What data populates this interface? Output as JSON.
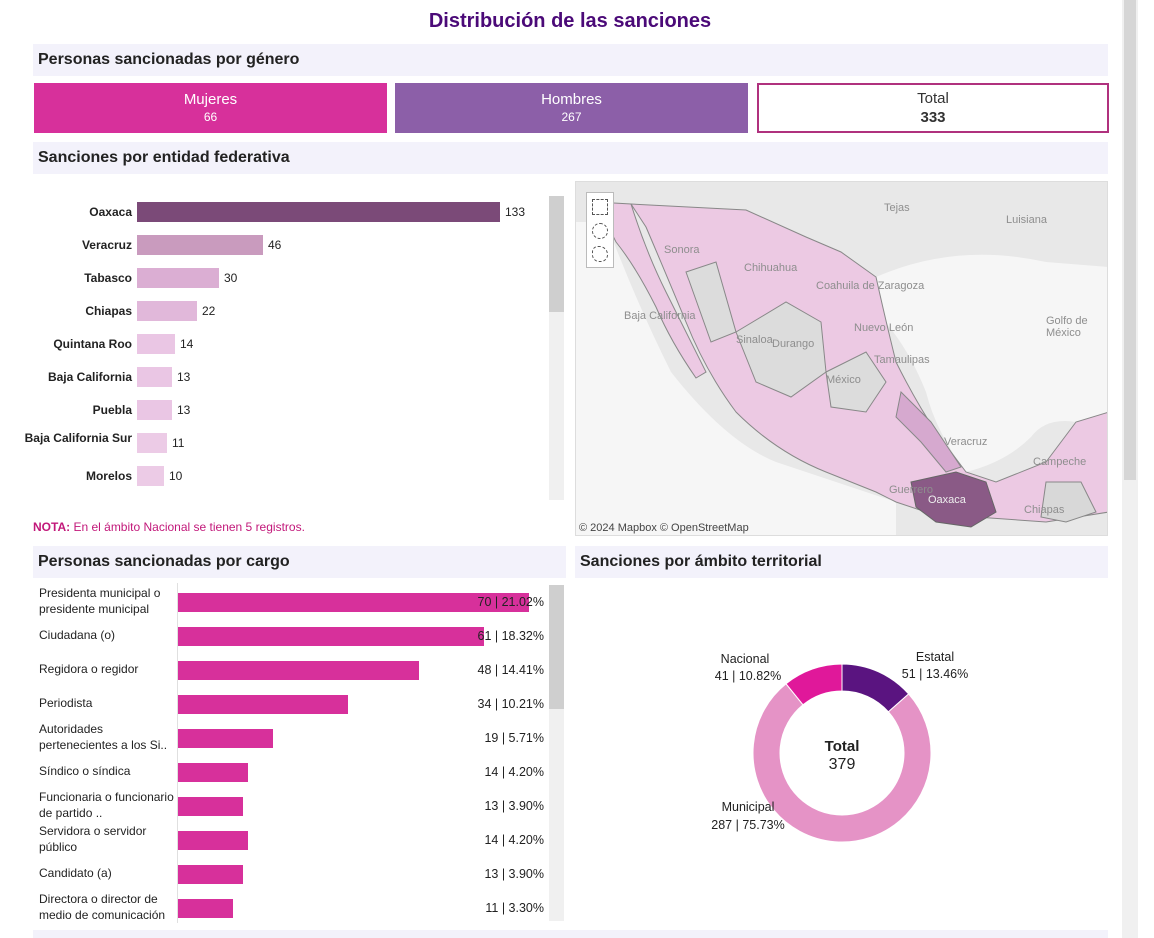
{
  "title": "Distribución de las sanciones",
  "genero": {
    "heading": "Personas sancionadas por género",
    "cards": [
      {
        "label": "Mujeres",
        "value": "66",
        "color": "#d7309b"
      },
      {
        "label": "Hombres",
        "value": "267",
        "color": "#8c5fa8"
      },
      {
        "label": "Total",
        "value": "333",
        "color": "#b0317e"
      }
    ]
  },
  "entidad": {
    "heading": "Sanciones por entidad federativa",
    "max": 133,
    "rows": [
      {
        "name": "Oaxaca",
        "value": 133,
        "label": "133",
        "color": "#7b4a78"
      },
      {
        "name": "Veracruz",
        "value": 46,
        "label": "46",
        "color": "#c99bbe"
      },
      {
        "name": "Tabasco",
        "value": 30,
        "label": "30",
        "color": "#dbaed3"
      },
      {
        "name": "Chiapas",
        "value": 22,
        "label": "22",
        "color": "#e1b8da"
      },
      {
        "name": "Quintana Roo",
        "value": 14,
        "label": "14",
        "color": "#eac6e4"
      },
      {
        "name": "Baja California",
        "value": 13,
        "label": "13",
        "color": "#eac6e4"
      },
      {
        "name": "Puebla",
        "value": 13,
        "label": "13",
        "color": "#eac6e4"
      },
      {
        "name": "Baja California Sur",
        "value": 11,
        "label": "11",
        "color": "#eccbe6"
      },
      {
        "name": "Morelos",
        "value": 10,
        "label": "10",
        "color": "#eccbe6"
      }
    ],
    "note_bold": "NOTA:",
    "note_text": "En el ámbito Nacional se tienen 5 registros."
  },
  "map": {
    "attribution": "© 2024 Mapbox  © OpenStreetMap",
    "labels": [
      "Tejas",
      "Luisiana",
      "Sonora",
      "Chihuahua",
      "Coahuila de Zaragoza",
      "Nuevo León",
      "Golfo de México",
      "Sinaloa",
      "Durango",
      "Tamaulipas",
      "México",
      "Veracruz",
      "Campeche",
      "Guerrero",
      "Oaxaca",
      "Chiapas",
      "Baja California"
    ]
  },
  "cargo": {
    "heading": "Personas sancionadas por cargo",
    "max": 70,
    "rows": [
      {
        "name": "Presidenta municipal o presidente municipal",
        "value": 70,
        "label": "70 | 21.02%"
      },
      {
        "name": "Ciudadana (o)",
        "value": 61,
        "label": "61 | 18.32%"
      },
      {
        "name": "Regidora o regidor",
        "value": 48,
        "label": "48 | 14.41%"
      },
      {
        "name": "Periodista",
        "value": 34,
        "label": "34 | 10.21%"
      },
      {
        "name": "Autoridades pertenecientes a los Si..",
        "value": 19,
        "label": "19 | 5.71%"
      },
      {
        "name": "Síndico o síndica",
        "value": 14,
        "label": "14 | 4.20%"
      },
      {
        "name": "Funcionaria o funcionario de partido ..",
        "value": 13,
        "label": "13 | 3.90%"
      },
      {
        "name": "Servidora o servidor público",
        "value": 14,
        "label": "14 | 4.20%"
      },
      {
        "name": "Candidato (a)",
        "value": 13,
        "label": "13 | 3.90%"
      },
      {
        "name": "Directora o director de medio de comunicación",
        "value": 11,
        "label": "11 | 3.30%"
      }
    ]
  },
  "ambito": {
    "heading": "Sanciones por ámbito territorial",
    "total_label": "Total",
    "total_value": "379",
    "slices": [
      {
        "name": "Estatal",
        "value": 51,
        "label": "51 | 13.46%",
        "color": "#5a1480"
      },
      {
        "name": "Municipal",
        "value": 287,
        "label": "287 | 75.73%",
        "color": "#e593c6"
      },
      {
        "name": "Nacional",
        "value": 41,
        "label": "41 | 10.82%",
        "color": "#e0189a"
      }
    ]
  },
  "chart_data": [
    {
      "type": "bar",
      "title": "Sanciones por entidad federativa",
      "categories": [
        "Oaxaca",
        "Veracruz",
        "Tabasco",
        "Chiapas",
        "Quintana Roo",
        "Baja California",
        "Puebla",
        "Baja California Sur",
        "Morelos"
      ],
      "values": [
        133,
        46,
        30,
        22,
        14,
        13,
        13,
        11,
        10
      ]
    },
    {
      "type": "bar",
      "title": "Personas sancionadas por cargo",
      "categories": [
        "Presidenta municipal o presidente municipal",
        "Ciudadana (o)",
        "Regidora o regidor",
        "Periodista",
        "Autoridades pertenecientes a los Si..",
        "Síndico o síndica",
        "Funcionaria o funcionario de partido ..",
        "Servidora o servidor público",
        "Candidato (a)",
        "Directora o director de medio de comunicación"
      ],
      "values": [
        70,
        61,
        48,
        34,
        19,
        14,
        13,
        14,
        13,
        11
      ]
    },
    {
      "type": "pie",
      "title": "Sanciones por ámbito territorial",
      "categories": [
        "Estatal",
        "Municipal",
        "Nacional"
      ],
      "values": [
        51,
        287,
        41
      ]
    }
  ]
}
